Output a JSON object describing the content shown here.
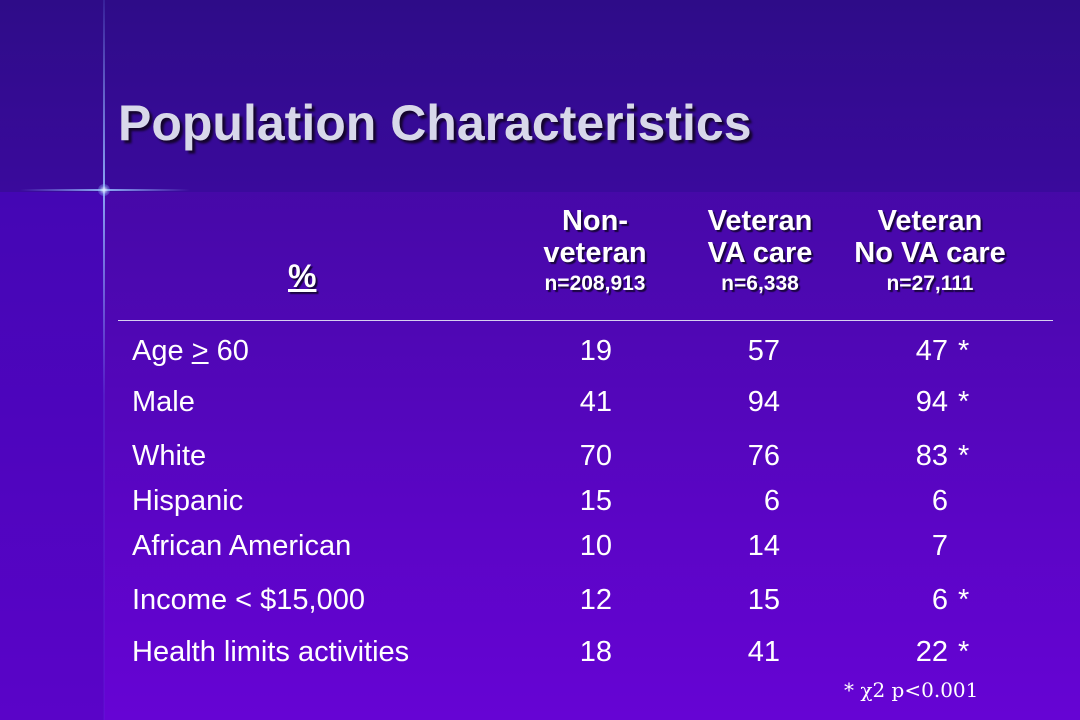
{
  "slide": {
    "title": "Population Characteristics",
    "percent_label": "%",
    "columns": [
      {
        "line1": "Non-",
        "line2": "veteran",
        "n": "n=208,913"
      },
      {
        "line1": "Veteran",
        "line2": "VA care",
        "n": "n=6,338"
      },
      {
        "line1": "Veteran",
        "line2": "No VA care",
        "n": "n=27,111"
      }
    ],
    "rows": [
      {
        "label_prefix": "Age ",
        "label_symbol": ">",
        "label_suffix": " 60",
        "values": [
          "19",
          "57",
          "47"
        ],
        "marker": "*"
      },
      {
        "label": "Male",
        "values": [
          "41",
          "94",
          "94"
        ],
        "marker": "*"
      },
      {
        "label": "White",
        "values": [
          "70",
          "76",
          "83"
        ],
        "marker": "*"
      },
      {
        "label": "Hispanic",
        "values": [
          "15",
          "6",
          "6"
        ],
        "marker": ""
      },
      {
        "label": "African American",
        "values": [
          "10",
          "14",
          "7"
        ],
        "marker": ""
      },
      {
        "label": "Income < $15,000",
        "values": [
          "12",
          "15",
          "6"
        ],
        "marker": "*"
      },
      {
        "label": "Health limits activities",
        "values": [
          "18",
          "41",
          "22"
        ],
        "marker": "*"
      }
    ],
    "footnote": "* χ2 p<0.001"
  }
}
